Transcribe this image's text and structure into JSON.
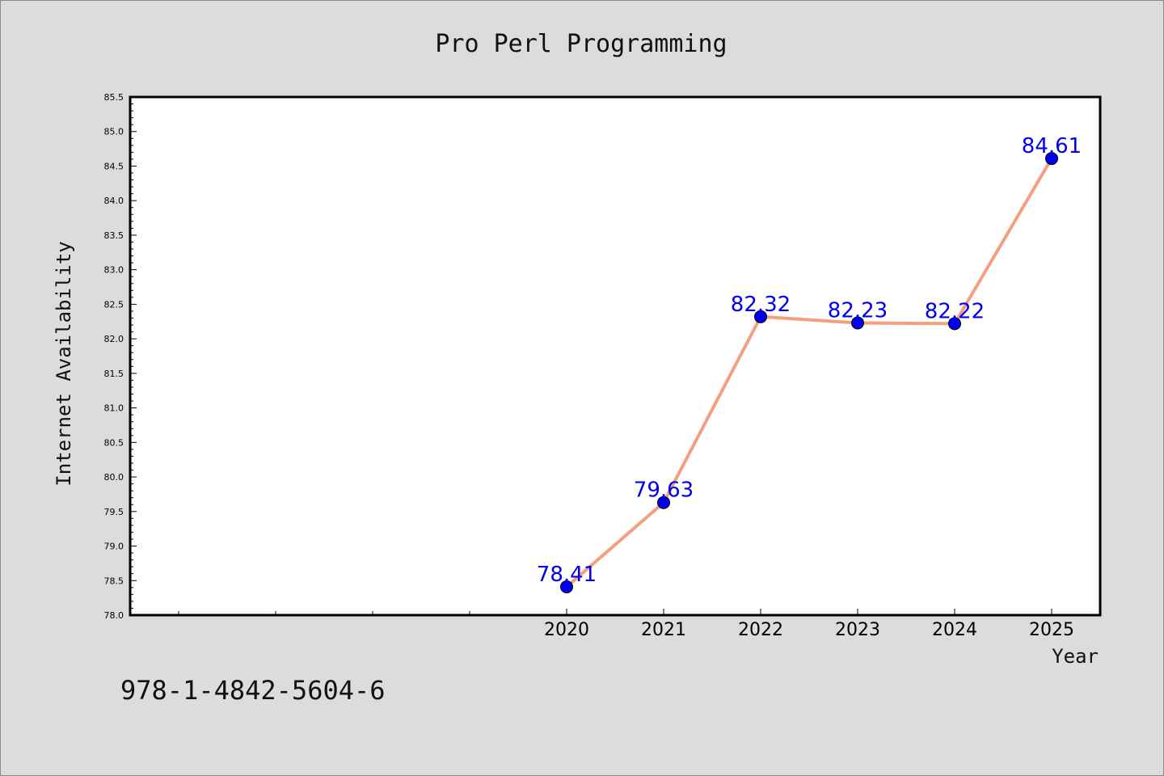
{
  "chart_data": {
    "type": "line",
    "title": "Pro Perl Programming",
    "xlabel": "Year",
    "ylabel": "Internet Availability",
    "x": [
      "2020",
      "2021",
      "2022",
      "2023",
      "2024",
      "2025"
    ],
    "series": [
      {
        "values": [
          78.41,
          79.63,
          82.32,
          82.23,
          82.22,
          84.61
        ]
      }
    ],
    "data_labels": [
      "78.41",
      "79.63",
      "82.32",
      "82.23",
      "82.22",
      "84.61"
    ],
    "ylim": [
      78.0,
      85.5
    ],
    "y_ticks": [
      "78.0",
      "78.5",
      "79.0",
      "79.5",
      "80.0",
      "80.5",
      "81.0",
      "81.5",
      "82.0",
      "82.5",
      "83.0",
      "83.5",
      "84.0",
      "84.5",
      "85.0",
      "85.5"
    ],
    "x_categories_slots": 10,
    "x_first_labeled_slot": 4,
    "grid": false,
    "legend": "none",
    "colors": {
      "line": "#f4a07e",
      "marker": "#0000ee",
      "label": "#0000ee",
      "background": "#dcdcdc",
      "plot_background": "#ffffff"
    }
  },
  "footer": {
    "isbn": "978-1-4842-5604-6"
  }
}
